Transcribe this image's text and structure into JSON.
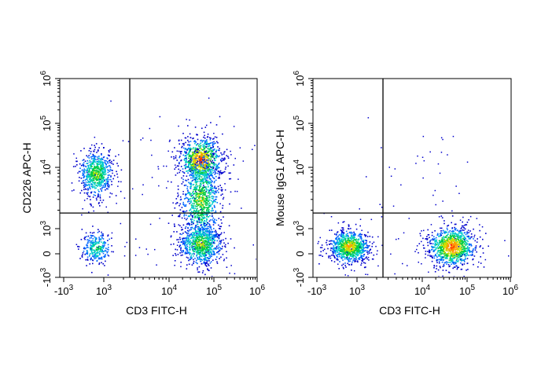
{
  "chart_data": [
    {
      "type": "scatter",
      "subtype": "flow-cytometry-density-dot-plot",
      "xlabel": "CD3 FITC-H",
      "ylabel": "CD226 APC-H",
      "x_scale": "biexponential",
      "y_scale": "biexponential",
      "xlim": [
        -3000,
        1000000
      ],
      "ylim": [
        -1000,
        1000000
      ],
      "x_ticks": [
        {
          "value": -1000,
          "base": "-10",
          "exp": "3"
        },
        {
          "value": 1000,
          "base": "10",
          "exp": "3"
        },
        {
          "value": 10000,
          "base": "10",
          "exp": "4"
        },
        {
          "value": 100000,
          "base": "10",
          "exp": "5"
        },
        {
          "value": 1000000,
          "base": "10",
          "exp": "6"
        }
      ],
      "y_ticks": [
        {
          "value": -1000,
          "base": "-10",
          "exp": "3"
        },
        {
          "value": 0,
          "base": "0",
          "exp": ""
        },
        {
          "value": 1000,
          "base": "10",
          "exp": "3"
        },
        {
          "value": 10000,
          "base": "10",
          "exp": "4"
        },
        {
          "value": 100000,
          "base": "10",
          "exp": "5"
        },
        {
          "value": 1000000,
          "base": "10",
          "exp": "6"
        }
      ],
      "gate": {
        "x": 2500,
        "y": 1800
      },
      "populations": [
        {
          "x_center": 600,
          "y_center": 8000,
          "density": "high"
        },
        {
          "x_center": 600,
          "y_center": 250,
          "density": "medium"
        },
        {
          "x_center": 50000,
          "y_center": 15000,
          "density": "very high"
        },
        {
          "x_center": 50000,
          "y_center": 3000,
          "density": "high"
        },
        {
          "x_center": 50000,
          "y_center": 400,
          "density": "high"
        }
      ],
      "grid": false,
      "legend": "none"
    },
    {
      "type": "scatter",
      "subtype": "flow-cytometry-density-dot-plot",
      "xlabel": "CD3 FITC-H",
      "ylabel": "Mouse IgG1 APC-H",
      "x_scale": "biexponential",
      "y_scale": "biexponential",
      "xlim": [
        -3000,
        1000000
      ],
      "ylim": [
        -1000,
        1000000
      ],
      "x_ticks": [
        {
          "value": -1000,
          "base": "-10",
          "exp": "3"
        },
        {
          "value": 1000,
          "base": "10",
          "exp": "3"
        },
        {
          "value": 10000,
          "base": "10",
          "exp": "4"
        },
        {
          "value": 100000,
          "base": "10",
          "exp": "5"
        },
        {
          "value": 1000000,
          "base": "10",
          "exp": "6"
        }
      ],
      "y_ticks": [
        {
          "value": -1000,
          "base": "-10",
          "exp": "3"
        },
        {
          "value": 0,
          "base": "0",
          "exp": ""
        },
        {
          "value": 1000,
          "base": "10",
          "exp": "3"
        },
        {
          "value": 10000,
          "base": "10",
          "exp": "4"
        },
        {
          "value": 100000,
          "base": "10",
          "exp": "5"
        },
        {
          "value": 1000000,
          "base": "10",
          "exp": "6"
        }
      ],
      "gate": {
        "x": 2500,
        "y": 1800
      },
      "populations": [
        {
          "x_center": 600,
          "y_center": 300,
          "density": "very high"
        },
        {
          "x_center": 45000,
          "y_center": 300,
          "density": "very high"
        }
      ],
      "grid": false,
      "legend": "none"
    }
  ],
  "colors": {
    "density_scale": [
      "#0000cc",
      "#0066ff",
      "#00cccc",
      "#00cc44",
      "#ccdd00",
      "#ff9900",
      "#ff2200"
    ],
    "frame": "#000000"
  }
}
